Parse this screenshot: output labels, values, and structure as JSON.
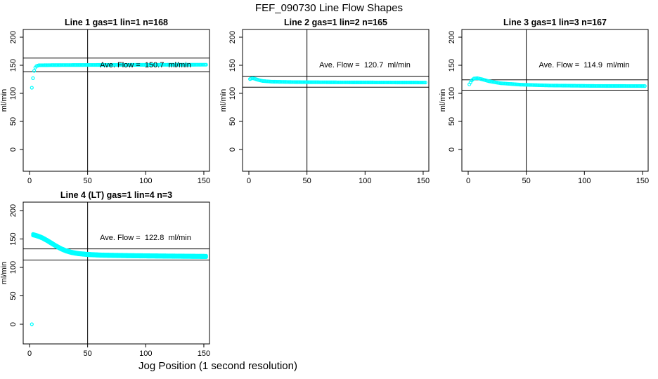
{
  "title": "FEF_090730  Line Flow Shapes",
  "xlabel": "Jog Position (1 second resolution)",
  "colors": {
    "marker": "#00FFFF",
    "axis": "#000000",
    "background": "#FFFFFF",
    "text": "#000000"
  },
  "chart_data": [
    {
      "type": "scatter",
      "title": "Line 1 gas=1 lin=1 n=168",
      "annotation": "Ave. Flow =  150.7  ml/min",
      "ave_flow": 150.7,
      "n": 168,
      "ylabel": "ml/min",
      "xticks": [
        0,
        50,
        100,
        150
      ],
      "yticks": [
        0,
        50,
        100,
        150,
        200
      ],
      "xlim": [
        -5,
        155
      ],
      "ylim": [
        -40,
        214
      ],
      "vline_x": 50,
      "limit_lines": [
        162.8,
        138.6
      ],
      "annotation_xy": [
        100,
        150
      ],
      "runs": 1,
      "points": [
        [
          2,
          110
        ],
        [
          3,
          127
        ],
        [
          4,
          140
        ],
        [
          5,
          146
        ],
        [
          6,
          148.5
        ],
        [
          8,
          150
        ],
        [
          20,
          150.3
        ],
        [
          60,
          150.6
        ],
        [
          120,
          150.9
        ],
        [
          152,
          151
        ]
      ],
      "outliers": []
    },
    {
      "type": "scatter",
      "title": "Line 2 gas=1 lin=2 n=165",
      "annotation": "Ave. Flow =  120.7  ml/min",
      "ave_flow": 120.7,
      "n": 165,
      "ylabel": "ml/min",
      "xticks": [
        0,
        50,
        100,
        150
      ],
      "yticks": [
        0,
        50,
        100,
        150,
        200
      ],
      "xlim": [
        -5,
        155
      ],
      "ylim": [
        -40,
        214
      ],
      "vline_x": 50,
      "limit_lines": [
        130.4,
        111.0
      ],
      "annotation_xy": [
        100,
        150
      ],
      "runs": 1,
      "points": [
        [
          1,
          125.5
        ],
        [
          3,
          127
        ],
        [
          5,
          126
        ],
        [
          8,
          124
        ],
        [
          12,
          122
        ],
        [
          20,
          120.7
        ],
        [
          40,
          120
        ],
        [
          80,
          119.6
        ],
        [
          152,
          119.3
        ]
      ],
      "outliers": []
    },
    {
      "type": "scatter",
      "title": "Line 3 gas=1 lin=3 n=167",
      "annotation": "Ave. Flow =  114.9  ml/min",
      "ave_flow": 114.9,
      "n": 167,
      "ylabel": "ml/min",
      "xticks": [
        0,
        50,
        100,
        150
      ],
      "yticks": [
        0,
        50,
        100,
        150,
        200
      ],
      "xlim": [
        -5,
        155
      ],
      "ylim": [
        -40,
        214
      ],
      "vline_x": 50,
      "limit_lines": [
        124.1,
        105.7
      ],
      "annotation_xy": [
        100,
        150
      ],
      "runs": 1,
      "points": [
        [
          1,
          116
        ],
        [
          3,
          123
        ],
        [
          5,
          126.5
        ],
        [
          8,
          127
        ],
        [
          12,
          125
        ],
        [
          18,
          121.5
        ],
        [
          28,
          118
        ],
        [
          45,
          115.5
        ],
        [
          70,
          114
        ],
        [
          110,
          113.2
        ],
        [
          152,
          113
        ]
      ],
      "outliers": []
    },
    {
      "type": "scatter",
      "title": "Line 4 (LT) gas=1 lin=4 n=3",
      "annotation": "Ave. Flow =  122.8  ml/min",
      "ave_flow": 122.8,
      "n": 3,
      "ylabel": "ml/min",
      "xticks": [
        0,
        50,
        100,
        150
      ],
      "yticks": [
        0,
        50,
        100,
        150,
        200
      ],
      "xlim": [
        -5,
        155
      ],
      "ylim": [
        -40,
        214
      ],
      "vline_x": 50,
      "limit_lines": [
        132.6,
        113.0
      ],
      "annotation_xy": [
        100,
        150
      ],
      "runs": 3,
      "points": [
        [
          3,
          157.5
        ],
        [
          5,
          156.5
        ],
        [
          8,
          154.5
        ],
        [
          11,
          152
        ],
        [
          15,
          147.5
        ],
        [
          19,
          142.5
        ],
        [
          23,
          137.5
        ],
        [
          27,
          133
        ],
        [
          31,
          129.5
        ],
        [
          36,
          126.5
        ],
        [
          42,
          124.3
        ],
        [
          50,
          122.8
        ],
        [
          62,
          121.6
        ],
        [
          85,
          120.7
        ],
        [
          115,
          120
        ],
        [
          152,
          119.3
        ]
      ],
      "outliers": [
        [
          2,
          0
        ]
      ]
    }
  ]
}
